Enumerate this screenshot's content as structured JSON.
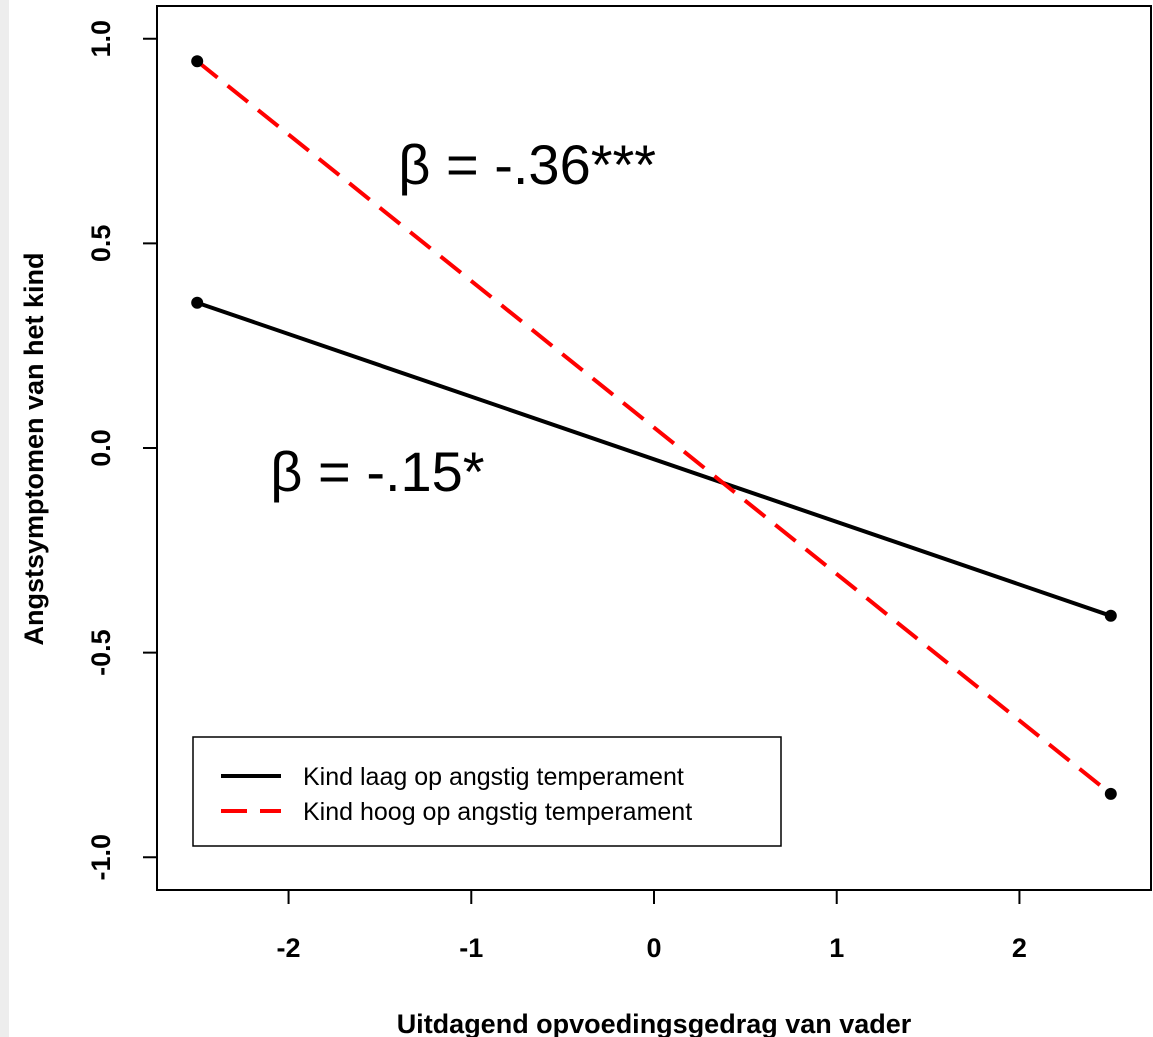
{
  "chart_data": {
    "type": "line",
    "xlabel": "Uitdagend opvoedingsgedrag van vader",
    "ylabel": "Angstsymptomen van het kind",
    "xlim": [
      -2.72,
      2.72
    ],
    "ylim": [
      -1.08,
      1.08
    ],
    "x_ticks": [
      "-2",
      "-1",
      "0",
      "1",
      "2"
    ],
    "y_ticks": [
      "-1.0",
      "-0.5",
      "0.0",
      "0.5",
      "1.0"
    ],
    "grid": false,
    "legend_position": "bottom-left",
    "series": [
      {
        "name": "Kind laag op angstig temperament",
        "color": "#000000",
        "line_style": "solid",
        "points": [
          {
            "x": -2.5,
            "y": 0.355
          },
          {
            "x": 2.5,
            "y": -0.41
          }
        ]
      },
      {
        "name": "Kind hoog op angstig temperament",
        "color": "#ff0000",
        "line_style": "dashed",
        "points": [
          {
            "x": -2.5,
            "y": 0.945
          },
          {
            "x": 2.5,
            "y": -0.845
          }
        ]
      }
    ],
    "annotations": [
      {
        "text": "β = -.36***",
        "x": -1.4,
        "y": 0.645
      },
      {
        "text": "β = -.15*",
        "x": -2.1,
        "y": -0.105
      }
    ]
  }
}
